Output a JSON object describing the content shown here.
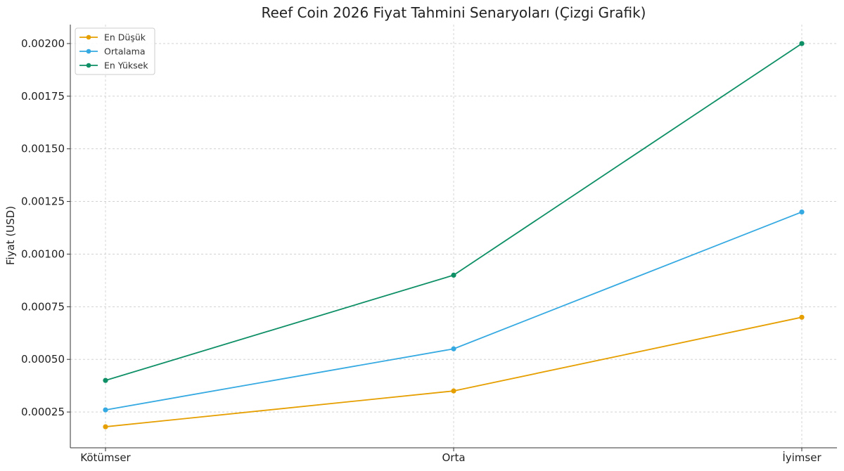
{
  "chart_data": {
    "type": "line",
    "title": "Reef Coin 2026 Fiyat Tahmini Senaryoları (Çizgi Grafik)",
    "xlabel": "",
    "ylabel": "Fiyat (USD)",
    "categories": [
      "Kötümser",
      "Orta",
      "İyimser"
    ],
    "ylim": [
      8e-05,
      0.00209
    ],
    "yticks": [
      0.00025,
      0.0005,
      0.00075,
      0.001,
      0.00125,
      0.0015,
      0.00175,
      0.002
    ],
    "ytick_labels": [
      "0.00025",
      "0.00050",
      "0.00075",
      "0.00100",
      "0.00125",
      "0.00150",
      "0.00175",
      "0.00200"
    ],
    "grid": true,
    "legend_position": "top-left",
    "series": [
      {
        "name": "En Düşük",
        "color": "#e69f00",
        "values": [
          0.00018,
          0.00035,
          0.0007
        ]
      },
      {
        "name": "Ortalama",
        "color": "#35a9e1",
        "values": [
          0.00026,
          0.00055,
          0.0012
        ]
      },
      {
        "name": "En Yüksek",
        "color": "#0e8f66",
        "values": [
          0.0004,
          0.0009,
          0.002
        ]
      }
    ]
  }
}
